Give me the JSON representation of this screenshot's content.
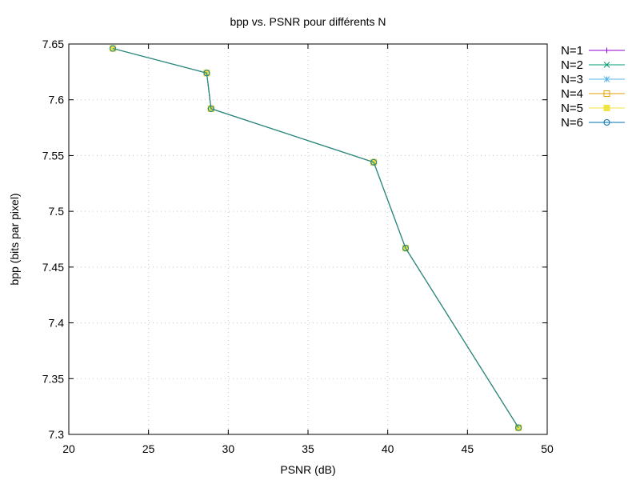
{
  "chart_data": {
    "type": "line",
    "title": "bpp vs. PSNR pour différents N",
    "xlabel": "PSNR (dB)",
    "ylabel": "bpp (bits par pixel)",
    "xlim": [
      20,
      50
    ],
    "ylim": [
      7.3,
      7.65
    ],
    "xticks": [
      "20",
      "25",
      "30",
      "35",
      "40",
      "45",
      "50"
    ],
    "yticks": [
      "7.3",
      "7.35",
      "7.4",
      "7.45",
      "7.5",
      "7.55",
      "7.6",
      "7.65"
    ],
    "grid": true,
    "legend_position": "outside-top-right",
    "series": [
      {
        "name": "N=1",
        "color": "#9400d3",
        "marker": "plus",
        "points": [
          [
            22.76,
            7.646
          ],
          [
            28.65,
            7.624
          ],
          [
            28.92,
            7.592
          ],
          [
            39.12,
            7.544
          ],
          [
            41.12,
            7.467
          ],
          [
            48.2,
            7.306
          ]
        ]
      },
      {
        "name": "N=2",
        "color": "#009e73",
        "marker": "cross",
        "points": [
          [
            22.76,
            7.646
          ],
          [
            28.65,
            7.624
          ],
          [
            28.92,
            7.592
          ],
          [
            39.12,
            7.544
          ],
          [
            41.12,
            7.467
          ],
          [
            48.2,
            7.306
          ]
        ]
      },
      {
        "name": "N=3",
        "color": "#56b4e9",
        "marker": "star",
        "points": [
          [
            22.76,
            7.646
          ],
          [
            28.65,
            7.624
          ],
          [
            28.92,
            7.592
          ],
          [
            39.12,
            7.544
          ],
          [
            41.12,
            7.467
          ],
          [
            48.2,
            7.306
          ]
        ]
      },
      {
        "name": "N=4",
        "color": "#e69f00",
        "marker": "open-square",
        "points": [
          [
            22.76,
            7.646
          ],
          [
            28.65,
            7.624
          ],
          [
            28.92,
            7.592
          ],
          [
            39.12,
            7.544
          ],
          [
            41.12,
            7.467
          ],
          [
            48.2,
            7.306
          ]
        ]
      },
      {
        "name": "N=5",
        "color": "#f0e442",
        "marker": "filled-square",
        "points": [
          [
            22.76,
            7.646
          ],
          [
            28.65,
            7.624
          ],
          [
            28.92,
            7.592
          ],
          [
            39.12,
            7.544
          ],
          [
            41.12,
            7.467
          ],
          [
            48.2,
            7.306
          ]
        ]
      },
      {
        "name": "N=6",
        "color": "#0072b2",
        "marker": "open-circle",
        "points": [
          [
            22.76,
            7.646
          ],
          [
            28.65,
            7.624
          ],
          [
            28.92,
            7.592
          ],
          [
            39.12,
            7.544
          ],
          [
            41.12,
            7.467
          ],
          [
            48.2,
            7.306
          ]
        ]
      }
    ],
    "overlay_line_color": "#2a8a80"
  }
}
